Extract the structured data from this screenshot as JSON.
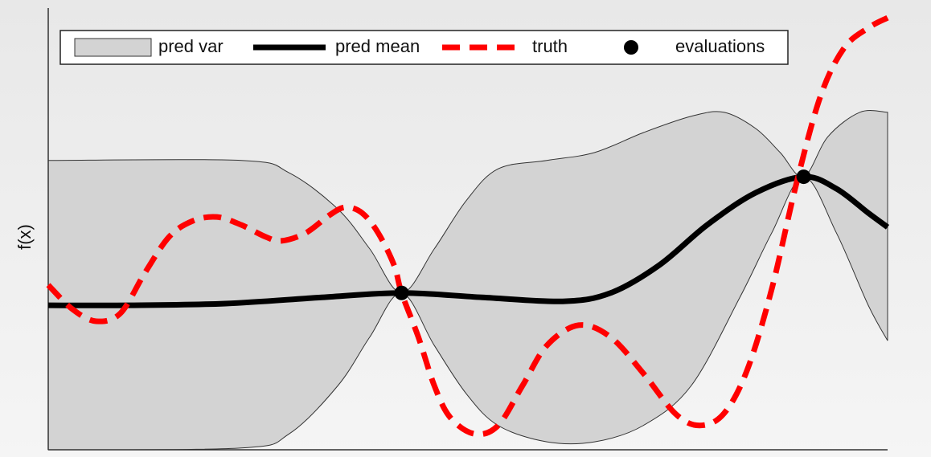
{
  "chart_data": {
    "type": "gp",
    "y_label": "f(x)",
    "xlim": [
      0,
      10
    ],
    "ylim": [
      0,
      10
    ],
    "legend": "upper left",
    "band": {
      "name": "pred var",
      "color": "#d3d3d3",
      "x_upper": [
        0,
        2.3,
        2.87,
        3.45,
        3.83,
        4.21,
        4.6,
        4.98,
        5.36,
        5.94,
        6.51,
        7.09,
        7.66,
        8.05,
        8.43,
        8.72,
        9.0,
        9.29,
        9.67,
        10
      ],
      "upper": [
        6.55,
        6.55,
        6.27,
        5.45,
        4.55,
        3.55,
        4.55,
        5.64,
        6.36,
        6.55,
        6.73,
        7.18,
        7.55,
        7.64,
        7.27,
        6.73,
        6.18,
        7.09,
        7.64,
        7.64
      ],
      "x_lower": [
        10,
        9.77,
        9.39,
        9.0,
        8.62,
        8.24,
        7.66,
        7.09,
        6.51,
        5.94,
        5.36,
        4.98,
        4.6,
        4.21,
        3.83,
        3.45,
        2.87,
        2.3,
        0
      ],
      "lower": [
        2.47,
        3.27,
        4.91,
        6.18,
        4.91,
        3.45,
        1.45,
        0.55,
        0.18,
        0.18,
        0.55,
        1.27,
        2.36,
        3.55,
        2.55,
        1.45,
        0.36,
        0.04,
        0
      ]
    },
    "series": [
      {
        "name": "pred mean",
        "color": "#000000",
        "style": "solid",
        "x": [
          0,
          0.96,
          2.11,
          3.26,
          4.21,
          5.17,
          6.13,
          6.7,
          7.28,
          7.85,
          8.43,
          9.0,
          9.39,
          9.77,
          10
        ],
        "values": [
          3.27,
          3.27,
          3.31,
          3.45,
          3.55,
          3.45,
          3.36,
          3.55,
          4.18,
          5.09,
          5.82,
          6.18,
          5.91,
          5.36,
          5.04
        ]
      },
      {
        "name": "truth",
        "color": "#ff0000",
        "style": "dashed",
        "x": [
          0,
          0.29,
          0.57,
          0.86,
          1.15,
          1.44,
          1.72,
          2.01,
          2.3,
          2.59,
          2.78,
          3.07,
          3.35,
          3.54,
          3.74,
          3.93,
          4.12,
          4.21,
          4.41,
          4.6,
          4.79,
          5.08,
          5.36,
          5.65,
          5.94,
          6.32,
          6.7,
          7.09,
          7.47,
          7.76,
          8.05,
          8.33,
          8.62,
          8.91,
          9.2,
          9.48,
          9.77,
          10
        ],
        "values": [
          3.73,
          3.18,
          2.91,
          3.09,
          4.0,
          4.82,
          5.18,
          5.27,
          5.09,
          4.82,
          4.73,
          4.91,
          5.31,
          5.49,
          5.36,
          4.91,
          4.18,
          3.55,
          2.55,
          1.45,
          0.73,
          0.36,
          0.55,
          1.45,
          2.36,
          2.82,
          2.55,
          1.73,
          0.82,
          0.55,
          0.82,
          1.82,
          3.64,
          6.0,
          8.0,
          9.09,
          9.55,
          9.78
        ]
      }
    ],
    "points": {
      "name": "evaluations",
      "color": "#000000",
      "x": [
        4.21,
        9.0
      ],
      "values": [
        3.55,
        6.18
      ]
    }
  }
}
